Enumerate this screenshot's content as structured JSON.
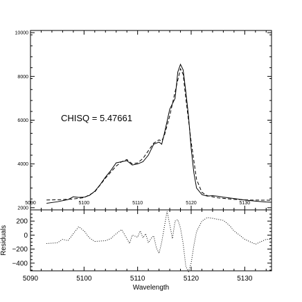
{
  "chart_data": [
    {
      "type": "line",
      "panel": "fit",
      "xlim": [
        5090,
        5135
      ],
      "ylim": [
        1900,
        10100
      ],
      "x_ticks": [
        "5090",
        "5100",
        "5110",
        "5120",
        "5130"
      ],
      "y_ticks": [
        "2000",
        "4000",
        "6000",
        "8000",
        "10000"
      ],
      "annotation": "CHISQ = 5.47661",
      "series": [
        {
          "style": "solid",
          "points": [
            [
              5093,
              2200
            ],
            [
              5095,
              2270
            ],
            [
              5097,
              2370
            ],
            [
              5098,
              2500
            ],
            [
              5099,
              2470
            ],
            [
              5100,
              2480
            ],
            [
              5101,
              2560
            ],
            [
              5102,
              2750
            ],
            [
              5103,
              3050
            ],
            [
              5104,
              3400
            ],
            [
              5105,
              3700
            ],
            [
              5106,
              4050
            ],
            [
              5107,
              4100
            ],
            [
              5108,
              4150
            ],
            [
              5108.5,
              4050
            ],
            [
              5109,
              3950
            ],
            [
              5110,
              4000
            ],
            [
              5111,
              4100
            ],
            [
              5112,
              4400
            ],
            [
              5113,
              4900
            ],
            [
              5114,
              5000
            ],
            [
              5114.5,
              4900
            ],
            [
              5115,
              5400
            ],
            [
              5116,
              6500
            ],
            [
              5117,
              7000
            ],
            [
              5117.5,
              8200
            ],
            [
              5118,
              8550
            ],
            [
              5118.5,
              8300
            ],
            [
              5119,
              7300
            ],
            [
              5119.5,
              6200
            ],
            [
              5120,
              4700
            ],
            [
              5120.5,
              3600
            ],
            [
              5121,
              2900
            ],
            [
              5122,
              2600
            ],
            [
              5123,
              2530
            ],
            [
              5124,
              2550
            ],
            [
              5125,
              2520
            ],
            [
              5126,
              2480
            ],
            [
              5127,
              2450
            ],
            [
              5128,
              2420
            ],
            [
              5130,
              2350
            ],
            [
              5132,
              2300
            ],
            [
              5134,
              2260
            ],
            [
              5135,
              2250
            ]
          ]
        },
        {
          "style": "dashed",
          "points": [
            [
              5093,
              2350
            ],
            [
              5096,
              2370
            ],
            [
              5098,
              2400
            ],
            [
              5100,
              2460
            ],
            [
              5102,
              2720
            ],
            [
              5104,
              3350
            ],
            [
              5106,
              3900
            ],
            [
              5107,
              4100
            ],
            [
              5108,
              4200
            ],
            [
              5109,
              4000
            ],
            [
              5110,
              4050
            ],
            [
              5111,
              4250
            ],
            [
              5112,
              4600
            ],
            [
              5113,
              4950
            ],
            [
              5114,
              5100
            ],
            [
              5114.5,
              5050
            ],
            [
              5115,
              5300
            ],
            [
              5116,
              6200
            ],
            [
              5117,
              7300
            ],
            [
              5118,
              8350
            ],
            [
              5118.5,
              8100
            ],
            [
              5119,
              7000
            ],
            [
              5120,
              5000
            ],
            [
              5121,
              3300
            ],
            [
              5122,
              2700
            ],
            [
              5123,
              2550
            ],
            [
              5125,
              2450
            ],
            [
              5128,
              2380
            ],
            [
              5131,
              2350
            ],
            [
              5135,
              2340
            ]
          ]
        }
      ]
    },
    {
      "type": "line",
      "panel": "residuals",
      "xlabel": "Wavelength",
      "ylabel": "Residuals",
      "xlim": [
        5090,
        5135
      ],
      "ylim": [
        -510,
        360
      ],
      "x_ticks": [
        "5090",
        "5100",
        "5110",
        "5120",
        "5130"
      ],
      "y_ticks": [
        "200",
        "0",
        "−200",
        "−400"
      ],
      "series": [
        {
          "style": "dotted",
          "points": [
            [
              5093,
              -120
            ],
            [
              5095,
              -110
            ],
            [
              5096,
              -60
            ],
            [
              5097,
              -80
            ],
            [
              5098,
              20
            ],
            [
              5099,
              120
            ],
            [
              5100,
              60
            ],
            [
              5101,
              -40
            ],
            [
              5102,
              -90
            ],
            [
              5104,
              -80
            ],
            [
              5105,
              -50
            ],
            [
              5106,
              20
            ],
            [
              5107,
              80
            ],
            [
              5108,
              -50
            ],
            [
              5108.5,
              -120
            ],
            [
              5109,
              0
            ],
            [
              5110,
              -30
            ],
            [
              5110.5,
              60
            ],
            [
              5111,
              -40
            ],
            [
              5111.5,
              20
            ],
            [
              5112,
              -110
            ],
            [
              5112.5,
              -50
            ],
            [
              5113,
              -10
            ],
            [
              5113.5,
              -180
            ],
            [
              5114,
              -260
            ],
            [
              5114.5,
              -100
            ],
            [
              5115,
              120
            ],
            [
              5115.5,
              340
            ],
            [
              5116,
              150
            ],
            [
              5116.5,
              -50
            ],
            [
              5117,
              200
            ],
            [
              5117.5,
              220
            ],
            [
              5118,
              100
            ],
            [
              5118.5,
              -120
            ],
            [
              5119,
              -450
            ],
            [
              5119.5,
              -520
            ],
            [
              5120,
              -400
            ],
            [
              5120.5,
              -150
            ],
            [
              5121,
              50
            ],
            [
              5122,
              200
            ],
            [
              5123,
              250
            ],
            [
              5124,
              240
            ],
            [
              5126,
              210
            ],
            [
              5127,
              150
            ],
            [
              5128,
              60
            ],
            [
              5130,
              -60
            ],
            [
              5132,
              -130
            ],
            [
              5134,
              -60
            ],
            [
              5135,
              -60
            ]
          ]
        }
      ]
    }
  ]
}
